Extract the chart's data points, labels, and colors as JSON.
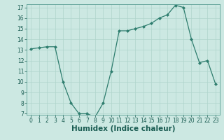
{
  "x": [
    0,
    1,
    2,
    3,
    4,
    5,
    6,
    7,
    8,
    9,
    10,
    11,
    12,
    13,
    14,
    15,
    16,
    17,
    18,
    19,
    20,
    21,
    22,
    23
  ],
  "y": [
    13.1,
    13.2,
    13.3,
    13.3,
    10.0,
    8.0,
    7.0,
    7.0,
    6.7,
    8.0,
    11.0,
    14.8,
    14.8,
    15.0,
    15.2,
    15.5,
    16.0,
    16.3,
    17.2,
    17.0,
    14.0,
    11.8,
    12.0,
    9.8
  ],
  "xlabel": "Humidex (Indice chaleur)",
  "ylabel": "",
  "title": "",
  "line_color": "#2e7d6e",
  "marker_color": "#2e7d6e",
  "bg_color": "#cce8e2",
  "grid_color": "#afd4cc",
  "axis_bg": "#cce8e2",
  "ylim": [
    7,
    17
  ],
  "xlim": [
    -0.5,
    23.5
  ],
  "yticks": [
    7,
    8,
    9,
    10,
    11,
    12,
    13,
    14,
    15,
    16,
    17
  ],
  "xticks": [
    0,
    1,
    2,
    3,
    4,
    5,
    6,
    7,
    8,
    9,
    10,
    11,
    12,
    13,
    14,
    15,
    16,
    17,
    18,
    19,
    20,
    21,
    22,
    23
  ],
  "xtick_labels": [
    "0",
    "1",
    "2",
    "3",
    "4",
    "5",
    "6",
    "7",
    "8",
    "9",
    "10",
    "11",
    "12",
    "13",
    "14",
    "15",
    "16",
    "17",
    "18",
    "19",
    "20",
    "21",
    "22",
    "23"
  ],
  "tick_fontsize": 5.5,
  "xlabel_fontsize": 7.5,
  "label_color": "#1a5c52"
}
